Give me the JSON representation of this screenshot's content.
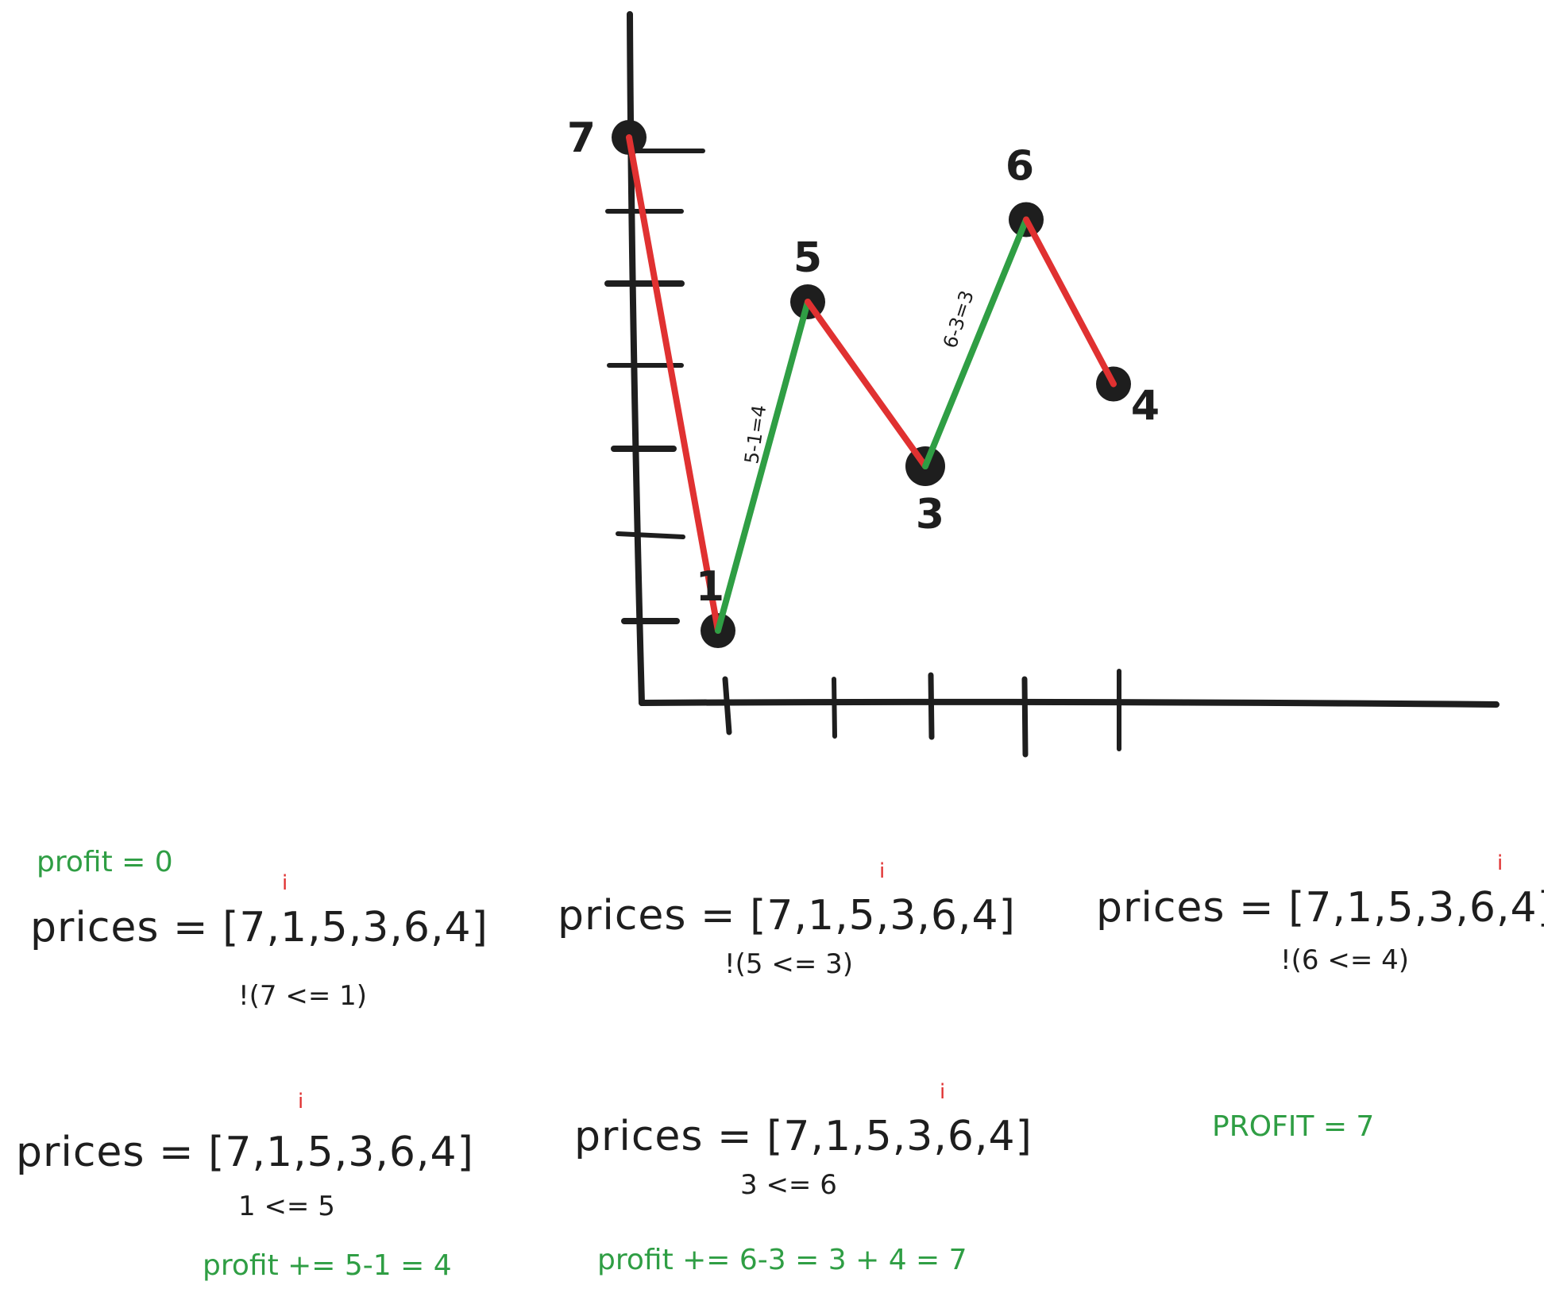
{
  "chart_data": {
    "type": "line",
    "x": [
      0,
      1,
      2,
      3,
      4,
      5
    ],
    "values": [
      7,
      1,
      5,
      3,
      6,
      4
    ],
    "point_labels": [
      "7",
      "1",
      "5",
      "3",
      "6",
      "4"
    ],
    "segment_annotations": [
      "5-1=4",
      "6-3=3"
    ],
    "segment_colors": [
      "#e03131",
      "#2f9e44",
      "#e03131",
      "#2f9e44",
      "#e03131"
    ],
    "grid": false
  },
  "colors": {
    "ink": "#1e1e1e",
    "down": "#e03131",
    "up": "#2f9e44",
    "pointer": "#e03131"
  },
  "profit_init": "profit = 0",
  "steps": [
    {
      "array": "prices = [7,1,5,3,6,4]",
      "pointer": "i",
      "condition": "!(7 <= 1)",
      "update": ""
    },
    {
      "array": "prices = [7,1,5,3,6,4]",
      "pointer": "i",
      "condition": "!(5 <= 3)",
      "update": ""
    },
    {
      "array": "prices = [7,1,5,3,6,4]",
      "pointer": "i",
      "condition": "!(6 <= 4)",
      "update": ""
    },
    {
      "array": "prices = [7,1,5,3,6,4]",
      "pointer": "i",
      "condition": "1 <= 5",
      "update": "profit += 5-1 = 4"
    },
    {
      "array": "prices = [7,1,5,3,6,4]",
      "pointer": "i",
      "condition": "3 <= 6",
      "update": "profit += 6-3 = 3 + 4 = 7"
    }
  ],
  "final_profit": "PROFIT = 7"
}
